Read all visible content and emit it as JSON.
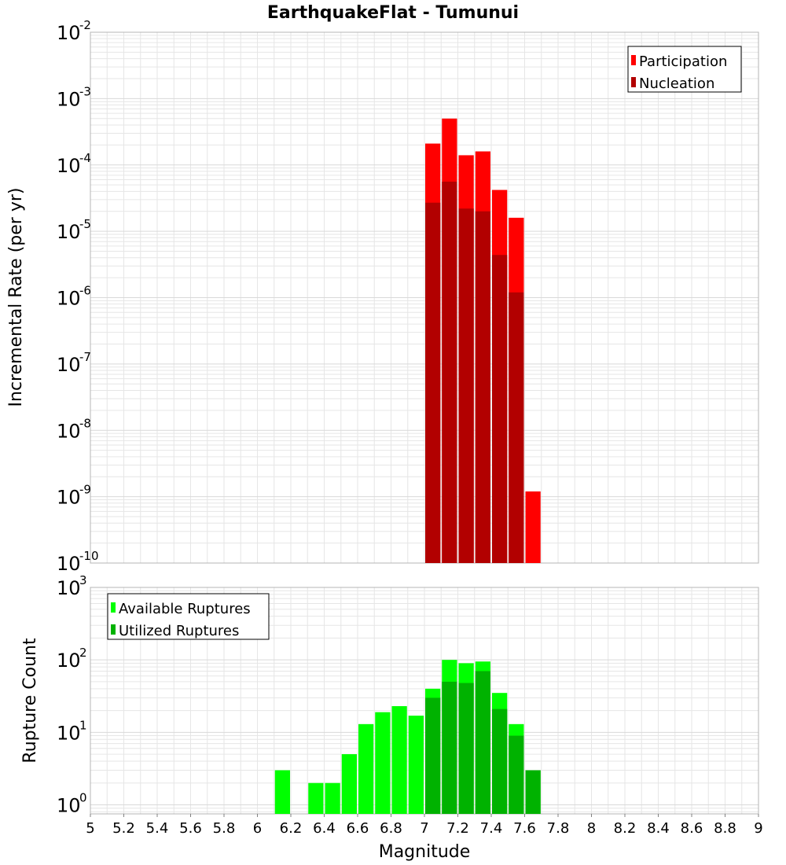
{
  "title": "EarthquakeFlat - Tumunui",
  "colors": {
    "participation": "#ff0000",
    "nucleation": "#b20000",
    "available": "#00ff00",
    "utilized": "#00b200",
    "grid": "#e6e6e6",
    "plot_border": "#b4b4b4"
  },
  "chart_data": [
    {
      "type": "bar",
      "name": "rate-panel",
      "ylabel": "Incremental Rate (per yr)",
      "xlabel": "",
      "yscale": "log",
      "xlim": [
        5,
        9
      ],
      "ylim": [
        1e-10,
        0.01
      ],
      "yticks": [
        {
          "base": "10",
          "exp": "-2"
        },
        {
          "base": "10",
          "exp": "-3"
        },
        {
          "base": "10",
          "exp": "-4"
        },
        {
          "base": "10",
          "exp": "-5"
        },
        {
          "base": "10",
          "exp": "-6"
        },
        {
          "base": "10",
          "exp": "-7"
        },
        {
          "base": "10",
          "exp": "-8"
        },
        {
          "base": "10",
          "exp": "-9"
        },
        {
          "base": "10",
          "exp": "-10"
        }
      ],
      "bin_width": 0.1,
      "legend": {
        "position": "top-right",
        "entries": [
          "Participation",
          "Nucleation"
        ]
      },
      "series": [
        {
          "name": "Participation",
          "x": [
            7.05,
            7.15,
            7.25,
            7.35,
            7.45,
            7.55,
            7.65
          ],
          "values": [
            0.00021,
            0.0005,
            0.00014,
            0.00016,
            4.2e-05,
            1.6e-05,
            1.2e-09
          ]
        },
        {
          "name": "Nucleation",
          "x": [
            7.05,
            7.15,
            7.25,
            7.35,
            7.45,
            7.55
          ],
          "values": [
            2.7e-05,
            5.6e-05,
            2.2e-05,
            2e-05,
            4.4e-06,
            1.2e-06
          ]
        }
      ]
    },
    {
      "type": "bar",
      "name": "count-panel",
      "ylabel": "Rupture Count",
      "xlabel": "Magnitude",
      "yscale": "log",
      "xlim": [
        5,
        9
      ],
      "ylim": [
        0.75,
        1000
      ],
      "yticks": [
        {
          "base": "10",
          "exp": "3"
        },
        {
          "base": "10",
          "exp": "2"
        },
        {
          "base": "10",
          "exp": "1"
        },
        {
          "base": "10",
          "exp": "0"
        }
      ],
      "xticks": [
        "5",
        "5.2",
        "5.4",
        "5.6",
        "5.8",
        "6",
        "6.2",
        "6.4",
        "6.6",
        "6.8",
        "7",
        "7.2",
        "7.4",
        "7.6",
        "7.8",
        "8",
        "8.2",
        "8.4",
        "8.6",
        "8.8",
        "9"
      ],
      "bin_width": 0.1,
      "legend": {
        "position": "top-left",
        "entries": [
          "Available Ruptures",
          "Utilized Ruptures"
        ]
      },
      "series": [
        {
          "name": "Available Ruptures",
          "x": [
            6.15,
            6.35,
            6.45,
            6.55,
            6.65,
            6.75,
            6.85,
            6.95,
            7.05,
            7.15,
            7.25,
            7.35,
            7.45,
            7.55,
            7.65
          ],
          "values": [
            3,
            2,
            2,
            5,
            13,
            19,
            23,
            17,
            40,
            100,
            90,
            95,
            35,
            13,
            3
          ]
        },
        {
          "name": "Utilized Ruptures",
          "x": [
            7.05,
            7.15,
            7.25,
            7.35,
            7.45,
            7.55,
            7.65
          ],
          "values": [
            30,
            50,
            48,
            70,
            21,
            9,
            3
          ]
        }
      ]
    }
  ]
}
